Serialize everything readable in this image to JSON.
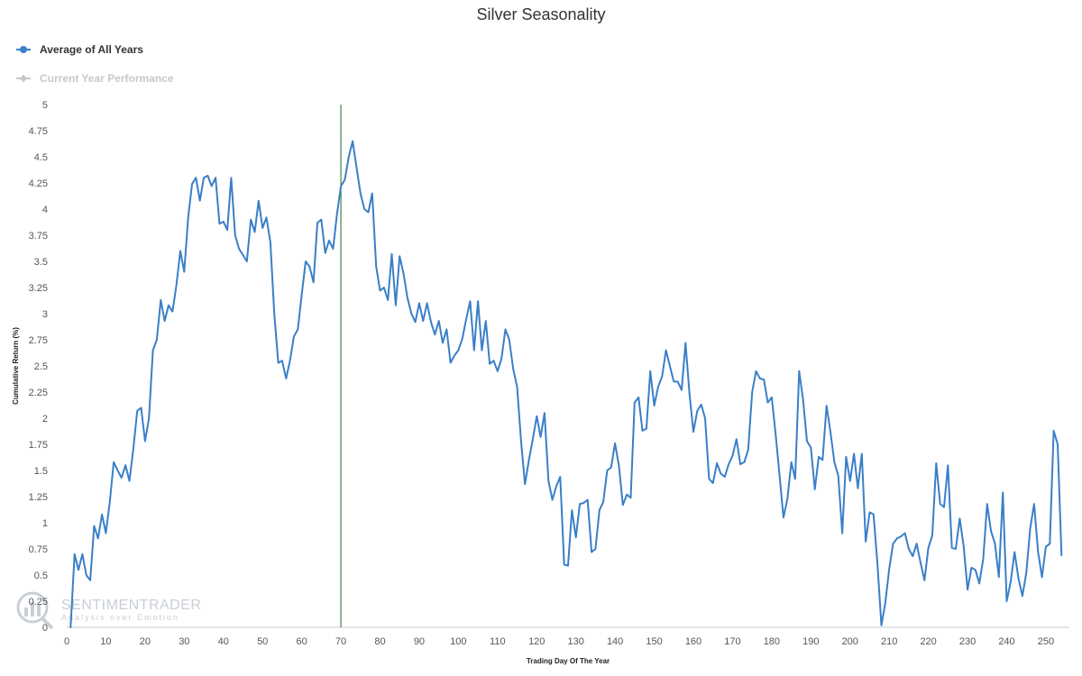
{
  "colors": {
    "series": "#3a7fc8",
    "inactive": "#c8c8c8",
    "marker_line": "#1d6b2a",
    "axis": "#cccccc",
    "watermark": "#c9cfd6"
  },
  "watermark": {
    "title": "SENTIMENTRADER",
    "subtitle": "Analysis over Emotion"
  },
  "chart_data": {
    "type": "line",
    "title": "Silver Seasonality",
    "xlabel": "Trading Day Of The Year",
    "ylabel": "Cumulative Return (%)",
    "xlim": [
      0,
      256
    ],
    "ylim": [
      0,
      5
    ],
    "x_ticks": [
      0,
      10,
      20,
      30,
      40,
      50,
      60,
      70,
      80,
      90,
      100,
      110,
      120,
      130,
      140,
      150,
      160,
      170,
      180,
      190,
      200,
      210,
      220,
      230,
      240,
      250
    ],
    "y_ticks": [
      0,
      0.25,
      0.5,
      0.75,
      1,
      1.25,
      1.5,
      1.75,
      2,
      2.25,
      2.5,
      2.75,
      3,
      3.25,
      3.5,
      3.75,
      4,
      4.25,
      4.5,
      4.75,
      5
    ],
    "grid": false,
    "legend": "top-left",
    "vertical_marker_x": 70,
    "series": [
      {
        "name": "Average of All Years",
        "active": true,
        "x_start": 1,
        "values": [
          0,
          0.7,
          0.55,
          0.7,
          0.5,
          0.45,
          0.97,
          0.85,
          1.08,
          0.9,
          1.2,
          1.58,
          1.5,
          1.43,
          1.55,
          1.4,
          1.7,
          2.07,
          2.1,
          1.78,
          2.0,
          2.65,
          2.75,
          3.13,
          2.93,
          3.08,
          3.02,
          3.27,
          3.6,
          3.4,
          3.92,
          4.24,
          4.3,
          4.08,
          4.3,
          4.32,
          4.22,
          4.3,
          3.86,
          3.88,
          3.8,
          4.3,
          3.75,
          3.62,
          3.56,
          3.5,
          3.9,
          3.78,
          4.08,
          3.82,
          3.92,
          3.68,
          3.0,
          2.53,
          2.55,
          2.38,
          2.55,
          2.78,
          2.85,
          3.18,
          3.5,
          3.45,
          3.3,
          3.87,
          3.9,
          3.58,
          3.7,
          3.62,
          3.95,
          4.22,
          4.28,
          4.5,
          4.65,
          4.4,
          4.15,
          4.0,
          3.97,
          4.15,
          3.45,
          3.22,
          3.25,
          3.13,
          3.57,
          3.08,
          3.55,
          3.38,
          3.15,
          3.0,
          2.92,
          3.1,
          2.93,
          3.1,
          2.92,
          2.8,
          2.93,
          2.72,
          2.85,
          2.53,
          2.6,
          2.65,
          2.76,
          2.95,
          3.12,
          2.65,
          3.12,
          2.65,
          2.93,
          2.52,
          2.55,
          2.45,
          2.57,
          2.85,
          2.75,
          2.47,
          2.3,
          1.78,
          1.37,
          1.6,
          1.8,
          2.02,
          1.82,
          2.05,
          1.4,
          1.22,
          1.35,
          1.44,
          0.6,
          0.59,
          1.12,
          0.86,
          1.18,
          1.19,
          1.22,
          0.72,
          0.75,
          1.12,
          1.2,
          1.5,
          1.53,
          1.76,
          1.54,
          1.17,
          1.27,
          1.24,
          2.15,
          2.2,
          1.88,
          1.9,
          2.45,
          2.12,
          2.3,
          2.4,
          2.65,
          2.5,
          2.35,
          2.35,
          2.27,
          2.72,
          2.23,
          1.87,
          2.07,
          2.13,
          2.0,
          1.42,
          1.38,
          1.57,
          1.47,
          1.44,
          1.56,
          1.64,
          1.8,
          1.56,
          1.58,
          1.7,
          2.25,
          2.45,
          2.38,
          2.37,
          2.15,
          2.2,
          1.85,
          1.45,
          1.05,
          1.23,
          1.58,
          1.42,
          2.45,
          2.18,
          1.78,
          1.72,
          1.32,
          1.63,
          1.6,
          2.12,
          1.87,
          1.58,
          1.45,
          0.9,
          1.63,
          1.4,
          1.66,
          1.33,
          1.66,
          0.82,
          1.1,
          1.08,
          0.6,
          0.02,
          0.23,
          0.56,
          0.8,
          0.85,
          0.87,
          0.9,
          0.75,
          0.68,
          0.8,
          0.62,
          0.45,
          0.76,
          0.88,
          1.57,
          1.18,
          1.15,
          1.55,
          0.76,
          0.75,
          1.04,
          0.78,
          0.36,
          0.57,
          0.55,
          0.42,
          0.65,
          1.18,
          0.92,
          0.8,
          0.48,
          1.29,
          0.25,
          0.43,
          0.72,
          0.47,
          0.3,
          0.52,
          0.95,
          1.18,
          0.72,
          0.48,
          0.77,
          0.8,
          1.88,
          1.75,
          0.69
        ]
      },
      {
        "name": "Current Year Performance",
        "active": false,
        "values": []
      }
    ]
  }
}
